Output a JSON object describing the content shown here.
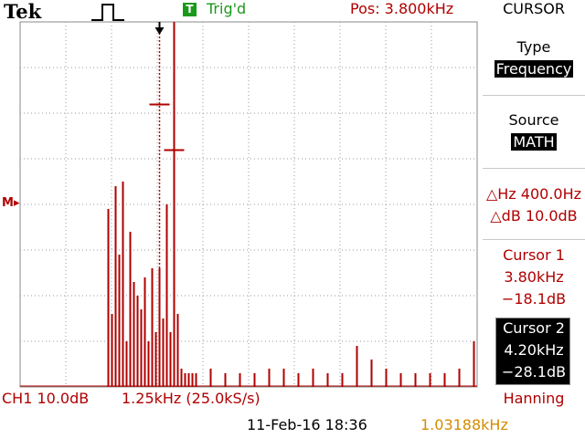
{
  "header": {
    "brand": "Tek",
    "trigger_badge": "T",
    "trigger_status": "Trig'd",
    "position": "Pos: 3.800kHz",
    "menu_title": "CURSOR"
  },
  "side_menu": {
    "type_label": "Type",
    "type_value": "Frequency",
    "source_label": "Source",
    "source_value": "MATH",
    "delta_hz": "△Hz 400.0Hz",
    "delta_db": "△dB 10.0dB",
    "cursor1_label": "Cursor 1",
    "cursor1_freq": "3.80kHz",
    "cursor1_db": "−18.1dB",
    "cursor2_label": "Cursor 2",
    "cursor2_freq": "4.20kHz",
    "cursor2_db": "−28.1dB"
  },
  "footer": {
    "ch1_scale": "CH1 10.0dB",
    "timebase": "1.25kHz (25.0kS/s)",
    "window": "Hanning",
    "datetime": "11-Feb-16 18:36",
    "trigger_frequency": "1.03188kHz"
  },
  "markers": {
    "math_ref": "M"
  },
  "colors": {
    "trace": "#b00000",
    "trigger_green": "#1a9a1a",
    "freq_readout": "#d48c00"
  },
  "chart_data": {
    "type": "bar",
    "x_range_khz": [
      0,
      12.5
    ],
    "y_div_db": 10.0,
    "divisions_x": 10,
    "divisions_y": 8,
    "grid": true,
    "cursor1_khz": 3.8,
    "cursor1_db": -18.1,
    "cursor2_khz": 4.2,
    "cursor2_db": -28.1,
    "spectrum_khz": [
      2.4,
      2.5,
      2.6,
      2.7,
      2.8,
      2.9,
      3.0,
      3.1,
      3.2,
      3.3,
      3.4,
      3.5,
      3.6,
      3.7,
      3.8,
      3.9,
      4.0,
      4.1,
      4.2,
      4.3,
      4.4,
      4.5,
      4.6,
      4.7,
      4.8,
      5.2,
      5.6,
      6.0,
      6.4,
      6.8,
      7.2,
      7.6,
      8.0,
      8.4,
      8.8,
      9.2,
      9.6,
      10.0,
      10.4,
      10.8,
      11.2,
      11.6,
      12.0,
      12.4
    ],
    "spectrum_div": [
      3.9,
      1.6,
      4.4,
      2.9,
      4.5,
      1.0,
      3.4,
      2.3,
      2.0,
      1.7,
      2.4,
      1.0,
      2.6,
      1.2,
      2.6,
      1.5,
      4.0,
      1.2,
      8.0,
      1.6,
      0.4,
      0.3,
      0.3,
      0.3,
      0.3,
      0.4,
      0.3,
      0.3,
      0.3,
      0.4,
      0.4,
      0.3,
      0.4,
      0.3,
      0.3,
      0.9,
      0.6,
      0.4,
      0.3,
      0.3,
      0.3,
      0.3,
      0.4,
      1.0
    ]
  }
}
